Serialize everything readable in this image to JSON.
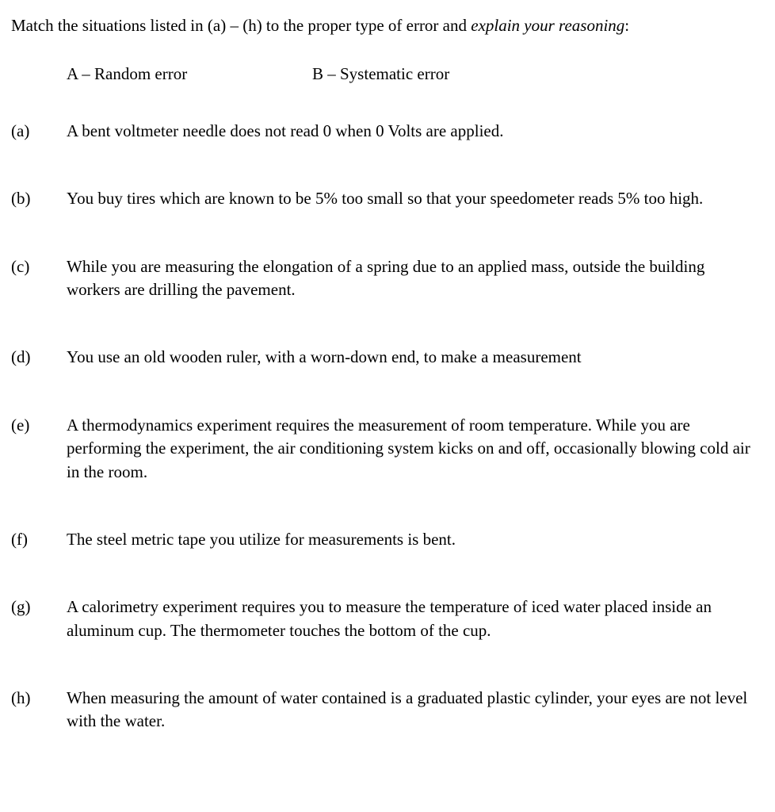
{
  "intro": {
    "prefix": "Match the situations listed in (a) – (h) to the proper type of error and ",
    "emphasis": "explain your reasoning",
    "suffix": ":"
  },
  "options": {
    "a": "A – Random error",
    "b": "B – Systematic error"
  },
  "questions": [
    {
      "label": "(a)",
      "text": "A bent voltmeter needle does not read 0 when 0 Volts are applied."
    },
    {
      "label": "(b)",
      "text": "You buy tires which are known to be 5% too small so that your speedometer reads 5% too high."
    },
    {
      "label": "(c)",
      "text": "While you are measuring the elongation of a spring due to an applied mass, outside the building workers are drilling the pavement."
    },
    {
      "label": "(d)",
      "text": "You use an old wooden ruler, with a worn-down end, to make a measurement"
    },
    {
      "label": "(e)",
      "text": "A thermodynamics experiment requires the measurement of room temperature. While you are performing the experiment, the air conditioning system kicks on and off, occasionally blowing cold air in the room."
    },
    {
      "label": "(f)",
      "text": "The steel metric tape you utilize for measurements is bent."
    },
    {
      "label": "(g)",
      "text": "A calorimetry experiment requires you to measure the temperature of iced water placed inside an aluminum cup. The thermometer touches the bottom of the cup."
    },
    {
      "label": "(h)",
      "text": "When measuring the amount of water contained is a graduated plastic cylinder, your eyes are not level with the water."
    }
  ]
}
